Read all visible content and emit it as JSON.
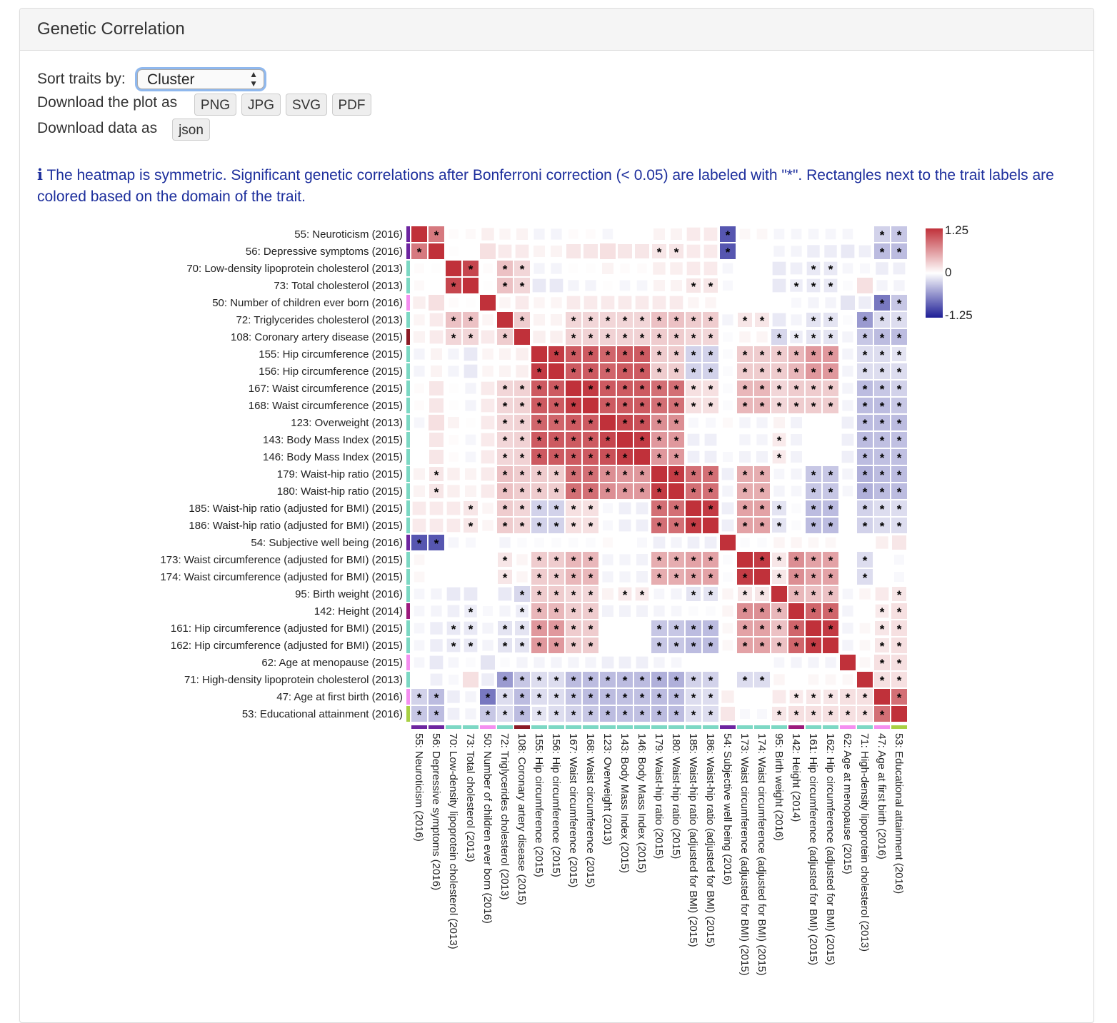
{
  "panel": {
    "title": "Genetic Correlation"
  },
  "controls": {
    "sort_label": "Sort traits by:",
    "sort_value": "Cluster",
    "download_plot_label": "Download the plot as",
    "plot_formats": [
      "PNG",
      "JPG",
      "SVG",
      "PDF"
    ],
    "download_data_label": "Download data as",
    "data_format": "json"
  },
  "info": {
    "icon": "info-icon",
    "text": "The heatmap is symmetric. Significant genetic correlations after Bonferroni correction (< 0.05) are labeled with \"*\". Rectangles next to the trait labels are colored based on the domain of the trait."
  },
  "colors": {
    "positive": "#c0313a",
    "negative": "#1e1e96",
    "info_text": "#1c2e9c"
  },
  "chart_data": {
    "type": "heatmap",
    "title": "Genetic Correlation",
    "symmetric": true,
    "significance_marker": "*",
    "color_scale": {
      "min": -1.25,
      "max": 1.25,
      "tick_labels": [
        "1.25",
        "0",
        "-1.25"
      ]
    },
    "traits": [
      {
        "label": "55: Neuroticism (2016)",
        "domain_color": "#6d25a0"
      },
      {
        "label": "56: Depressive symptoms (2016)",
        "domain_color": "#6d25a0"
      },
      {
        "label": "70: Low-density lipoprotein cholesterol (2013)",
        "domain_color": "#7dd8c4"
      },
      {
        "label": "73: Total cholesterol (2013)",
        "domain_color": "#7dd8c4"
      },
      {
        "label": "50: Number of children ever born (2016)",
        "domain_color": "#f48ff0"
      },
      {
        "label": "72: Triglycerides cholesterol (2013)",
        "domain_color": "#7dd8c4"
      },
      {
        "label": "108: Coronary artery disease (2015)",
        "domain_color": "#8b1a24"
      },
      {
        "label": "155: Hip circumference (2015)",
        "domain_color": "#7dd8c4"
      },
      {
        "label": "156: Hip circumference (2015)",
        "domain_color": "#7dd8c4"
      },
      {
        "label": "167: Waist circumference (2015)",
        "domain_color": "#7dd8c4"
      },
      {
        "label": "168: Waist circumference (2015)",
        "domain_color": "#7dd8c4"
      },
      {
        "label": "123: Overweight (2013)",
        "domain_color": "#7dd8c4"
      },
      {
        "label": "143: Body Mass Index (2015)",
        "domain_color": "#7dd8c4"
      },
      {
        "label": "146: Body Mass Index (2015)",
        "domain_color": "#7dd8c4"
      },
      {
        "label": "179: Waist-hip ratio (2015)",
        "domain_color": "#7dd8c4"
      },
      {
        "label": "180: Waist-hip ratio (2015)",
        "domain_color": "#7dd8c4"
      },
      {
        "label": "185: Waist-hip ratio (adjusted for BMI) (2015)",
        "domain_color": "#7dd8c4"
      },
      {
        "label": "186: Waist-hip ratio (adjusted for BMI) (2015)",
        "domain_color": "#7dd8c4"
      },
      {
        "label": "54: Subjective well being (2016)",
        "domain_color": "#6d25a0"
      },
      {
        "label": "173: Waist circumference (adjusted for BMI) (2015)",
        "domain_color": "#7dd8c4"
      },
      {
        "label": "174: Waist circumference (adjusted for BMI) (2015)",
        "domain_color": "#7dd8c4"
      },
      {
        "label": "95: Birth weight (2016)",
        "domain_color": "#7dd8c4"
      },
      {
        "label": "142: Height (2014)",
        "domain_color": "#9c1a7c"
      },
      {
        "label": "161: Hip circumference (adjusted for BMI) (2015)",
        "domain_color": "#7dd8c4"
      },
      {
        "label": "162: Hip circumference (adjusted for BMI) (2015)",
        "domain_color": "#7dd8c4"
      },
      {
        "label": "62: Age at menopause (2015)",
        "domain_color": "#f48ff0"
      },
      {
        "label": "71: High-density lipoprotein cholesterol (2013)",
        "domain_color": "#7dd8c4"
      },
      {
        "label": "47: Age at first birth (2016)",
        "domain_color": "#f48ff0"
      },
      {
        "label": "53: Educational attainment (2016)",
        "domain_color": "#a8d044"
      }
    ],
    "lower_triangle_values": [
      [
        1
      ],
      [
        0.65,
        1
      ],
      [
        0.02,
        0.01,
        1
      ],
      [
        0.03,
        0,
        0.9,
        1
      ],
      [
        0.08,
        0.15,
        0.02,
        0.01,
        1
      ],
      [
        0.05,
        0.1,
        0.3,
        0.3,
        0.05,
        1
      ],
      [
        0.06,
        0.1,
        0.2,
        0.2,
        0.1,
        0.25,
        1
      ],
      [
        -0.05,
        0.06,
        -0.05,
        -0.1,
        0.05,
        0.06,
        0.08,
        1
      ],
      [
        -0.05,
        0.06,
        -0.05,
        -0.1,
        0.05,
        0.06,
        0.08,
        0.95,
        1
      ],
      [
        0.02,
        0.12,
        0.01,
        -0.05,
        0.1,
        0.2,
        0.22,
        0.8,
        0.8,
        1
      ],
      [
        0.02,
        0.12,
        0.01,
        -0.05,
        0.1,
        0.2,
        0.22,
        0.8,
        0.8,
        0.95,
        1
      ],
      [
        -0.04,
        0.15,
        0.06,
        0.01,
        0.1,
        0.2,
        0.22,
        0.75,
        0.75,
        0.8,
        0.8,
        1
      ],
      [
        0,
        0.12,
        0.02,
        -0.04,
        0.1,
        0.2,
        0.22,
        0.8,
        0.8,
        0.8,
        0.8,
        0.9,
        1
      ],
      [
        0,
        0.12,
        0.02,
        -0.04,
        0.1,
        0.2,
        0.22,
        0.8,
        0.8,
        0.8,
        0.8,
        0.85,
        0.95,
        1
      ],
      [
        0.06,
        0.12,
        0.08,
        0.06,
        0.1,
        0.3,
        0.25,
        0.25,
        0.25,
        0.7,
        0.7,
        0.55,
        0.5,
        0.5,
        1
      ],
      [
        0.06,
        0.12,
        0.08,
        0.06,
        0.1,
        0.3,
        0.25,
        0.25,
        0.25,
        0.7,
        0.7,
        0.55,
        0.5,
        0.5,
        0.95,
        1
      ],
      [
        0.1,
        0.1,
        0.1,
        0.12,
        0.05,
        0.25,
        0.2,
        -0.2,
        -0.2,
        0.15,
        0.15,
        -0.03,
        -0.07,
        -0.07,
        0.7,
        0.7,
        1
      ],
      [
        0.1,
        0.1,
        0.1,
        0.12,
        0.05,
        0.25,
        0.2,
        -0.2,
        -0.2,
        0.15,
        0.15,
        -0.03,
        -0.07,
        -0.07,
        0.7,
        0.7,
        0.95,
        1
      ],
      [
        -0.75,
        -0.75,
        -0.04,
        -0.03,
        0,
        -0.05,
        -0.02,
        -0.02,
        -0.02,
        -0.02,
        -0.02,
        0.03,
        0,
        -0.03,
        -0.07,
        -0.05,
        -0.07,
        -0.07,
        1
      ],
      [
        0.04,
        0,
        0,
        0,
        0,
        0.12,
        0.05,
        0.25,
        0.25,
        0.35,
        0.35,
        -0.05,
        -0.05,
        -0.06,
        0.4,
        0.4,
        0.45,
        0.45,
        -0.02,
        1
      ],
      [
        0.04,
        0,
        0,
        0,
        0,
        0.12,
        0.05,
        0.25,
        0.25,
        0.35,
        0.35,
        -0.05,
        -0.05,
        -0.06,
        0.4,
        0.4,
        0.45,
        0.45,
        -0.02,
        0.95,
        1
      ],
      [
        -0.04,
        -0.05,
        -0.1,
        -0.1,
        0,
        -0.1,
        -0.18,
        0.25,
        0.25,
        0.2,
        0.2,
        0.06,
        0.1,
        0.1,
        -0.04,
        -0.05,
        -0.12,
        -0.12,
        0.05,
        0.12,
        0.12,
        1
      ],
      [
        -0.04,
        -0.05,
        -0.07,
        -0.08,
        -0.03,
        -0.05,
        -0.08,
        0.35,
        0.35,
        0.25,
        0.25,
        -0.06,
        -0.06,
        -0.06,
        -0.05,
        -0.04,
        -0.02,
        -0.02,
        0.05,
        0.55,
        0.55,
        0.35,
        1
      ],
      [
        -0.04,
        -0.08,
        -0.1,
        -0.1,
        -0.05,
        -0.12,
        -0.12,
        0.5,
        0.5,
        0.25,
        0.25,
        0,
        0,
        0,
        -0.25,
        -0.25,
        -0.3,
        -0.3,
        0.04,
        0.45,
        0.45,
        0.3,
        0.75,
        1
      ],
      [
        -0.04,
        -0.08,
        -0.1,
        -0.1,
        -0.05,
        -0.12,
        -0.12,
        0.5,
        0.5,
        0.25,
        0.25,
        0,
        0,
        0,
        -0.25,
        -0.25,
        -0.3,
        -0.3,
        0.04,
        0.45,
        0.45,
        0.3,
        0.75,
        0.95,
        1
      ],
      [
        -0.04,
        -0.1,
        -0.04,
        -0.02,
        -0.12,
        -0.02,
        -0.05,
        -0.05,
        -0.05,
        -0.05,
        -0.05,
        -0.07,
        -0.07,
        -0.07,
        -0.05,
        -0.04,
        0,
        0,
        0,
        0,
        0,
        -0.04,
        -0.05,
        -0.05,
        -0.05,
        1
      ],
      [
        0,
        -0.07,
        -0.03,
        0.15,
        -0.08,
        -0.45,
        -0.25,
        -0.15,
        -0.15,
        -0.3,
        -0.3,
        -0.3,
        -0.3,
        -0.3,
        -0.35,
        -0.35,
        -0.2,
        -0.2,
        0,
        -0.15,
        -0.15,
        0.05,
        0,
        0.04,
        0.04,
        0.04,
        1
      ],
      [
        -0.2,
        -0.3,
        -0.08,
        -0.05,
        -0.6,
        -0.15,
        -0.3,
        -0.15,
        -0.15,
        -0.25,
        -0.3,
        -0.3,
        -0.28,
        -0.28,
        -0.3,
        -0.3,
        -0.15,
        -0.15,
        0.08,
        0,
        0,
        0.1,
        0.1,
        0.12,
        0.12,
        0.15,
        0.15,
        1
      ],
      [
        -0.25,
        -0.3,
        -0.07,
        -0.05,
        -0.25,
        -0.15,
        -0.3,
        -0.12,
        -0.15,
        -0.2,
        -0.25,
        -0.3,
        -0.28,
        -0.28,
        -0.3,
        -0.3,
        -0.15,
        -0.15,
        0.12,
        -0.03,
        -0.03,
        0.12,
        0.15,
        0.15,
        0.15,
        0.15,
        0.15,
        0.7,
        1
      ]
    ],
    "significant_lower_indices": [
      [],
      [
        0
      ],
      [],
      [
        2
      ],
      [],
      [
        2,
        3
      ],
      [
        2,
        3,
        5
      ],
      [],
      [
        7
      ],
      [
        5,
        6,
        7,
        8
      ],
      [
        5,
        6,
        7,
        8,
        9
      ],
      [
        5,
        6,
        7,
        8,
        9,
        10
      ],
      [
        5,
        6,
        7,
        8,
        9,
        10,
        11
      ],
      [
        5,
        6,
        7,
        8,
        9,
        10,
        11,
        12
      ],
      [
        1,
        5,
        6,
        7,
        8,
        9,
        10,
        11,
        12,
        13
      ],
      [
        1,
        5,
        6,
        7,
        8,
        9,
        10,
        11,
        12,
        13,
        14
      ],
      [
        3,
        5,
        6,
        7,
        8,
        9,
        10,
        14,
        15
      ],
      [
        3,
        5,
        6,
        7,
        8,
        9,
        10,
        14,
        15,
        16
      ],
      [
        0,
        1
      ],
      [
        5,
        7,
        8,
        9,
        10,
        14,
        15,
        16,
        17
      ],
      [
        5,
        7,
        8,
        9,
        10,
        14,
        15,
        16,
        17,
        19
      ],
      [
        6,
        7,
        8,
        9,
        10,
        12,
        13,
        16,
        17,
        19,
        20
      ],
      [
        3,
        6,
        7,
        8,
        9,
        10,
        19,
        20,
        21
      ],
      [
        2,
        3,
        5,
        6,
        7,
        8,
        9,
        10,
        14,
        15,
        16,
        17,
        19,
        20,
        21,
        22
      ],
      [
        2,
        3,
        5,
        6,
        7,
        8,
        9,
        10,
        14,
        15,
        16,
        17,
        19,
        20,
        21,
        22,
        23
      ],
      [],
      [
        5,
        6,
        7,
        8,
        9,
        10,
        11,
        12,
        13,
        14,
        15,
        16,
        17,
        19,
        20
      ],
      [
        0,
        1,
        4,
        5,
        6,
        7,
        8,
        9,
        10,
        11,
        12,
        13,
        14,
        15,
        16,
        17,
        22,
        23,
        24,
        25,
        26
      ],
      [
        0,
        1,
        4,
        5,
        6,
        7,
        8,
        9,
        10,
        11,
        12,
        13,
        14,
        15,
        16,
        17,
        21,
        22,
        23,
        24,
        25,
        26,
        27
      ]
    ]
  }
}
